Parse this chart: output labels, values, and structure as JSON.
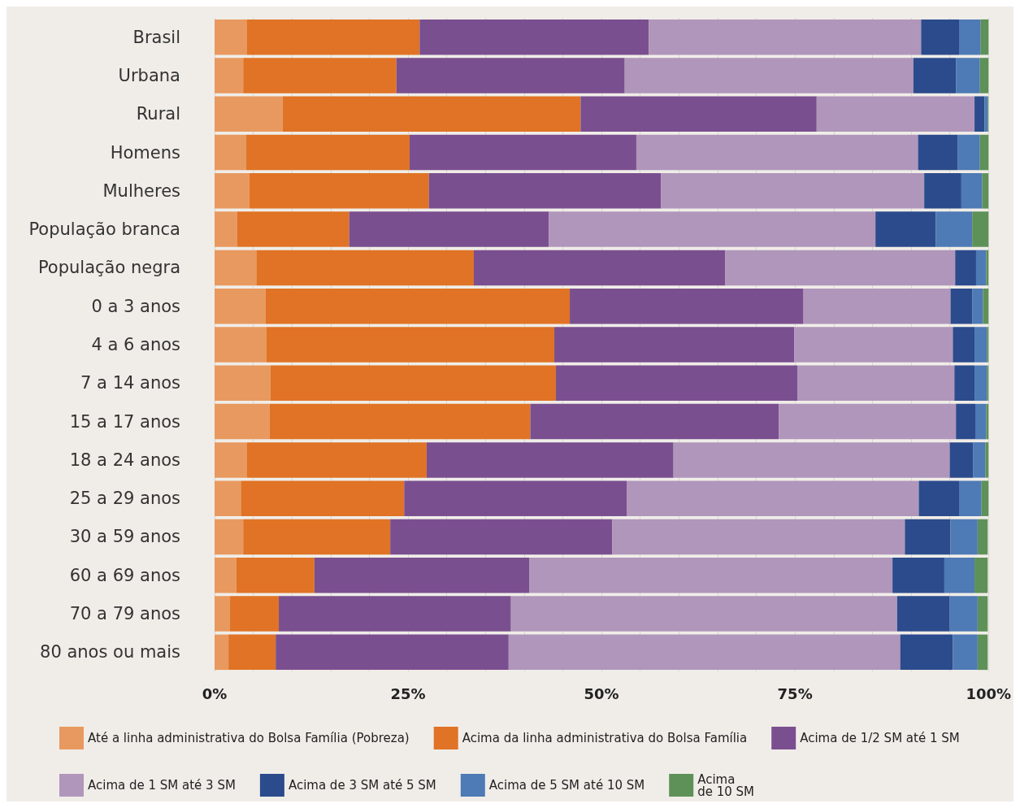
{
  "chart_data": {
    "type": "bar",
    "orientation": "horizontal",
    "stacked": true,
    "grid": "x",
    "legend": "bottom",
    "categories": [
      "Brasil",
      "Urbana",
      "Rural",
      "Homens",
      "Mulheres",
      "População branca",
      "População negra",
      "0 a 3 anos",
      "4 a 6 anos",
      "7 a 14 anos",
      "15 a 17 anos",
      "18 a 24 anos",
      "25 a 29 anos",
      "30 a 59 anos",
      "60 a 69 anos",
      "70 a 79 anos",
      "80 anos ou mais"
    ],
    "xlim": [
      0,
      100
    ],
    "xticks": [
      {
        "value": 0,
        "label": "0%"
      },
      {
        "value": 5,
        "label": null
      },
      {
        "value": 10,
        "label": null
      },
      {
        "value": 15,
        "label": null
      },
      {
        "value": 20,
        "label": null
      },
      {
        "value": 25,
        "label": "25%"
      },
      {
        "value": 30,
        "label": null
      },
      {
        "value": 35,
        "label": null
      },
      {
        "value": 40,
        "label": null
      },
      {
        "value": 45,
        "label": null
      },
      {
        "value": 50,
        "label": "50%"
      },
      {
        "value": 55,
        "label": null
      },
      {
        "value": 60,
        "label": null
      },
      {
        "value": 65,
        "label": null
      },
      {
        "value": 70,
        "label": null
      },
      {
        "value": 75,
        "label": "75%"
      },
      {
        "value": 80,
        "label": null
      },
      {
        "value": 85,
        "label": null
      },
      {
        "value": 90,
        "label": null
      },
      {
        "value": 95,
        "label": null
      },
      {
        "value": 100,
        "label": "100%"
      }
    ],
    "series": [
      {
        "name": "Até a linha administrativa do Bolsa Família (Pobreza)",
        "color": "#e8995f",
        "values": [
          4.2,
          3.7,
          8.8,
          4.1,
          4.5,
          2.9,
          5.4,
          6.6,
          6.7,
          7.2,
          7.1,
          4.2,
          3.4,
          3.7,
          2.8,
          2.0,
          1.8
        ]
      },
      {
        "name": "Acima da linha administrativa do Bolsa Família",
        "color": "#e07325",
        "values": [
          22.3,
          19.8,
          38.5,
          21.1,
          23.2,
          14.5,
          28.1,
          39.3,
          37.2,
          36.9,
          33.7,
          23.2,
          21.1,
          19.0,
          10.1,
          6.3,
          6.1
        ]
      },
      {
        "name": "Acima de 1/2 SM até 1 SM",
        "color": "#7a4f8f",
        "values": [
          29.6,
          29.5,
          30.5,
          29.3,
          30.0,
          25.8,
          32.5,
          30.2,
          31.0,
          31.2,
          32.1,
          31.9,
          28.8,
          28.7,
          27.8,
          30.0,
          30.1
        ]
      },
      {
        "name": "Acima de 1 SM até 3 SM",
        "color": "#b096bb",
        "values": [
          35.2,
          37.3,
          20.4,
          36.4,
          34.0,
          42.2,
          29.7,
          19.0,
          20.5,
          20.3,
          22.9,
          35.7,
          37.7,
          37.8,
          46.9,
          49.9,
          50.6
        ]
      },
      {
        "name": "Acima de 3 SM até 5 SM",
        "color": "#2b4b8c",
        "values": [
          4.9,
          5.5,
          1.3,
          5.1,
          4.8,
          7.8,
          2.7,
          2.8,
          2.8,
          2.6,
          2.5,
          3.0,
          5.2,
          5.9,
          6.7,
          6.8,
          6.8
        ]
      },
      {
        "name": "Acima de 5 SM até 10 SM",
        "color": "#4e7ab5",
        "values": [
          2.8,
          3.1,
          0.4,
          2.9,
          2.7,
          4.7,
          1.3,
          1.4,
          1.6,
          1.6,
          1.4,
          1.6,
          2.9,
          3.5,
          3.9,
          3.6,
          3.2
        ]
      },
      {
        "name": "Acima\nde 10 SM",
        "color": "#5e9158",
        "values": [
          1.0,
          1.1,
          0.1,
          1.1,
          0.8,
          2.1,
          0.3,
          0.7,
          0.3,
          0.3,
          0.4,
          0.4,
          0.9,
          1.3,
          1.7,
          1.3,
          1.3
        ]
      }
    ]
  }
}
